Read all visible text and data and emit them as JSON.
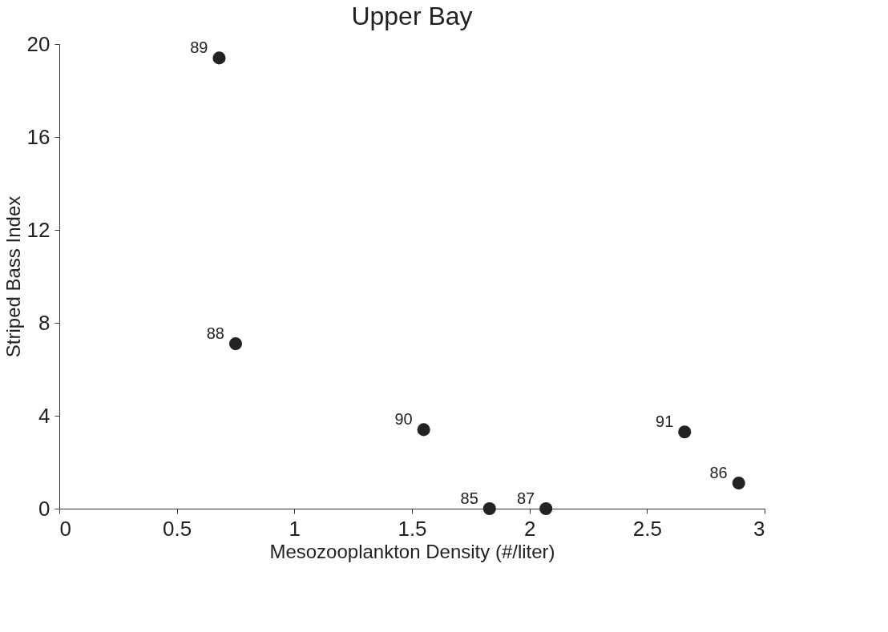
{
  "chart_data": {
    "type": "scatter",
    "title": "Upper Bay",
    "xlabel": "Mesozooplankton Density (#/liter)",
    "ylabel": "Striped Bass Index",
    "x": [
      0.68,
      0.75,
      1.55,
      1.83,
      2.07,
      2.66,
      2.89
    ],
    "series": [
      {
        "color": "#222222",
        "values": [
          19.4,
          7.1,
          3.4,
          0,
          0,
          3.3,
          1.1
        ]
      }
    ],
    "annotations": [
      {
        "text": "89",
        "x": 0.68,
        "y": 19.4
      },
      {
        "text": "88",
        "x": 0.75,
        "y": 7.1
      },
      {
        "text": "90",
        "x": 1.55,
        "y": 3.4
      },
      {
        "text": "85",
        "x": 1.83,
        "y": 0
      },
      {
        "text": "87",
        "x": 2.07,
        "y": 0
      },
      {
        "text": "91",
        "x": 2.66,
        "y": 3.3
      },
      {
        "text": "86",
        "x": 2.89,
        "y": 1.1
      }
    ],
    "xlim": [
      0,
      3
    ],
    "xticks": [
      0,
      0.5,
      1,
      1.5,
      2,
      2.5,
      3
    ],
    "ylim": [
      0,
      20
    ],
    "yticks": [
      0,
      4,
      8,
      12,
      16,
      20
    ],
    "grid": false,
    "marker": "circle"
  }
}
